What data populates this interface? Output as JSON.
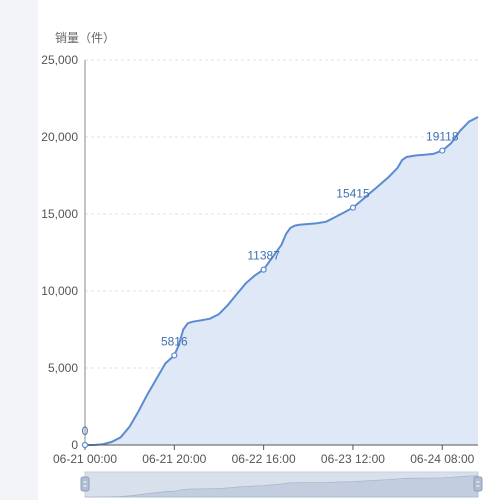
{
  "chart_data": {
    "type": "area",
    "ylabel": "销量（件）",
    "ylim": [
      0,
      25000
    ],
    "yticks": [
      0,
      5000,
      10000,
      15000,
      20000,
      25000
    ],
    "ytick_labels": [
      "0",
      "5,000",
      "10,000",
      "15,000",
      "20,000",
      "25,000"
    ],
    "xlim": [
      "2023-06-21 00:00",
      "2023-06-25 08:00"
    ],
    "xtick_labels": [
      "06-21 00:00",
      "06-21 20:00",
      "06-22 16:00",
      "06-23 12:00",
      "06-24 08:00"
    ],
    "xtick_hours": [
      0,
      20,
      40,
      60,
      80
    ],
    "grid": true,
    "series": [
      {
        "color": "#5b8bd0",
        "fill": "#dfe8f6",
        "points": [
          [
            0,
            0
          ],
          [
            2,
            0
          ],
          [
            4,
            50
          ],
          [
            6,
            200
          ],
          [
            8,
            500
          ],
          [
            10,
            1200
          ],
          [
            12,
            2200
          ],
          [
            14,
            3300
          ],
          [
            16,
            4300
          ],
          [
            18,
            5300
          ],
          [
            20,
            5816
          ],
          [
            21,
            6500
          ],
          [
            22,
            7500
          ],
          [
            23,
            7900
          ],
          [
            24,
            8000
          ],
          [
            26,
            8100
          ],
          [
            28,
            8200
          ],
          [
            30,
            8500
          ],
          [
            32,
            9100
          ],
          [
            34,
            9800
          ],
          [
            36,
            10500
          ],
          [
            38,
            11000
          ],
          [
            40,
            11387
          ],
          [
            42,
            12200
          ],
          [
            44,
            13000
          ],
          [
            45,
            13700
          ],
          [
            46,
            14100
          ],
          [
            47,
            14250
          ],
          [
            48,
            14300
          ],
          [
            50,
            14350
          ],
          [
            52,
            14400
          ],
          [
            54,
            14500
          ],
          [
            56,
            14800
          ],
          [
            58,
            15100
          ],
          [
            60,
            15415
          ],
          [
            62,
            15900
          ],
          [
            64,
            16400
          ],
          [
            66,
            16900
          ],
          [
            68,
            17400
          ],
          [
            70,
            18000
          ],
          [
            71,
            18500
          ],
          [
            72,
            18700
          ],
          [
            74,
            18800
          ],
          [
            76,
            18850
          ],
          [
            78,
            18900
          ],
          [
            80,
            19118
          ],
          [
            82,
            19600
          ],
          [
            84,
            20400
          ],
          [
            86,
            21000
          ],
          [
            88,
            21300
          ]
        ]
      }
    ],
    "data_labels": [
      {
        "x": 0,
        "y": 0,
        "text": "0"
      },
      {
        "x": 20,
        "y": 5816,
        "text": "5816"
      },
      {
        "x": 40,
        "y": 11387,
        "text": "11387"
      },
      {
        "x": 60,
        "y": 15415,
        "text": "15415"
      },
      {
        "x": 80,
        "y": 19118,
        "text": "19118"
      }
    ],
    "datazoom": true
  }
}
